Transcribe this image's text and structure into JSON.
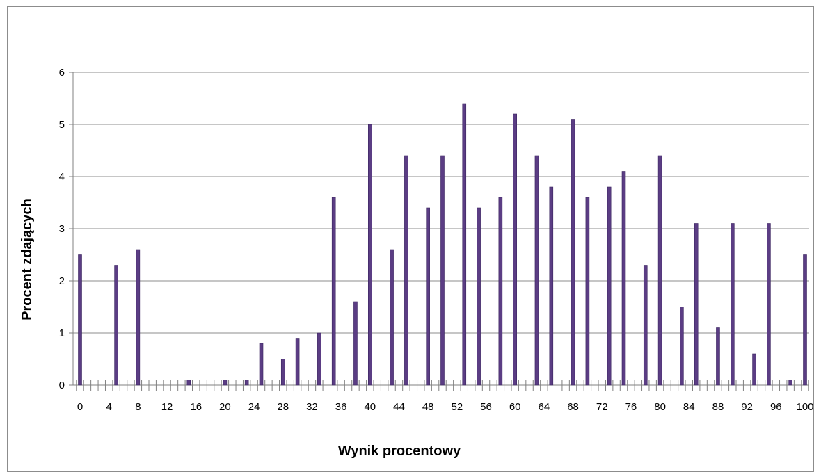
{
  "chart_data": {
    "type": "bar",
    "title": "",
    "xlabel": "Wynik procentowy",
    "ylabel": "Procent zdających",
    "ylim": [
      0,
      6
    ],
    "yticks": [
      "0",
      "1",
      "2",
      "3",
      "4",
      "5",
      "6"
    ],
    "xlim": [
      0,
      100
    ],
    "xtick_labels": [
      "0",
      "4",
      "8",
      "12",
      "16",
      "20",
      "24",
      "28",
      "32",
      "36",
      "40",
      "44",
      "48",
      "52",
      "56",
      "60",
      "64",
      "68",
      "72",
      "76",
      "80",
      "84",
      "88",
      "92",
      "96",
      "100"
    ],
    "grid": "horizontal",
    "bar_color": "#5b3d84",
    "categories": [
      0,
      1,
      2,
      3,
      4,
      5,
      6,
      7,
      8,
      9,
      10,
      11,
      12,
      13,
      14,
      15,
      16,
      17,
      18,
      19,
      20,
      21,
      22,
      23,
      24,
      25,
      26,
      27,
      28,
      29,
      30,
      31,
      32,
      33,
      34,
      35,
      36,
      37,
      38,
      39,
      40,
      41,
      42,
      43,
      44,
      45,
      46,
      47,
      48,
      49,
      50,
      51,
      52,
      53,
      54,
      55,
      56,
      57,
      58,
      59,
      60,
      61,
      62,
      63,
      64,
      65,
      66,
      67,
      68,
      69,
      70,
      71,
      72,
      73,
      74,
      75,
      76,
      77,
      78,
      79,
      80,
      81,
      82,
      83,
      84,
      85,
      86,
      87,
      88,
      89,
      90,
      91,
      92,
      93,
      94,
      95,
      96,
      97,
      98,
      99,
      100
    ],
    "values": [
      2.5,
      0,
      0,
      0,
      0,
      2.3,
      0,
      0,
      2.6,
      0,
      0,
      0,
      0,
      0,
      0,
      0.1,
      0,
      0,
      0,
      0,
      0.1,
      0,
      0,
      0.1,
      0,
      0.8,
      0,
      0,
      0.5,
      0,
      0.9,
      0,
      0,
      1.0,
      0,
      3.6,
      0,
      0,
      1.6,
      0,
      5.0,
      0,
      0,
      2.6,
      0,
      4.4,
      0,
      0,
      3.4,
      0,
      4.4,
      0,
      0,
      5.4,
      0,
      3.4,
      0,
      0,
      3.6,
      0,
      5.2,
      0,
      0,
      4.4,
      0,
      3.8,
      0,
      0,
      5.1,
      0,
      3.6,
      0,
      0,
      3.8,
      0,
      4.1,
      0,
      0,
      2.3,
      0,
      4.4,
      0,
      0,
      1.5,
      0,
      3.1,
      0,
      0,
      1.1,
      0,
      3.1,
      0,
      0,
      0.6,
      0,
      3.1,
      0,
      0,
      0.1,
      0,
      2.5
    ]
  }
}
